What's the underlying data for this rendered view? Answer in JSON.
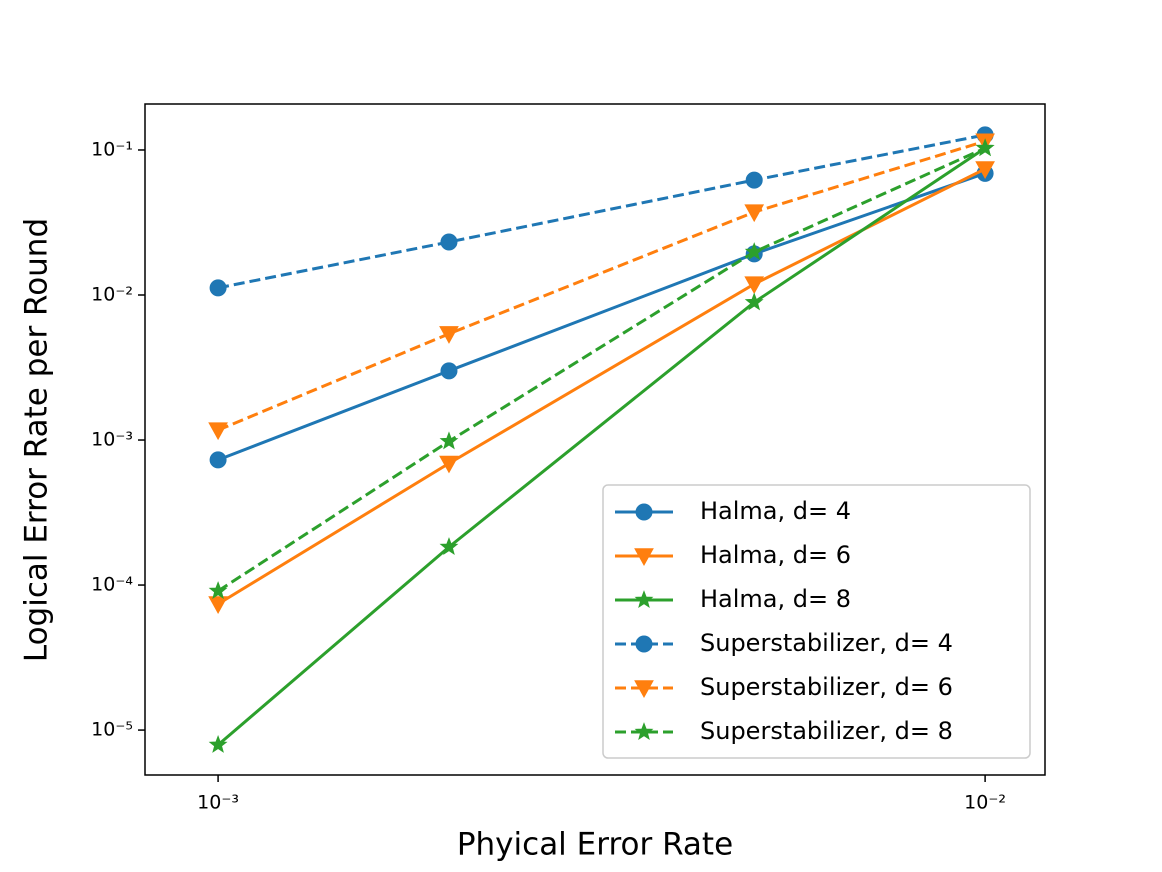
{
  "chart_data": {
    "type": "line",
    "xlabel": "Phyical Error Rate",
    "ylabel": "Logical Error Rate per Round",
    "x": [
      0.001,
      0.002,
      0.005,
      0.01
    ],
    "xscale": "log",
    "yscale": "log",
    "xlim": [
      0.000803,
      0.01197
    ],
    "ylim": [
      4.9e-06,
      0.2075
    ],
    "xticks": [
      {
        "value": 0.001,
        "label": "10⁻³"
      },
      {
        "value": 0.01,
        "label": "10⁻²"
      }
    ],
    "yticks": [
      {
        "value": 1e-05,
        "label": "10⁻⁵"
      },
      {
        "value": 0.0001,
        "label": "10⁻⁴"
      },
      {
        "value": 0.001,
        "label": "10⁻³"
      },
      {
        "value": 0.01,
        "label": "10⁻²"
      },
      {
        "value": 0.1,
        "label": "10⁻¹"
      }
    ],
    "legend": "lower right",
    "series": [
      {
        "name": "Halma, d= 4",
        "color": "#1f77b4",
        "marker": "circle",
        "linestyle": "solid",
        "values": [
          0.00073,
          0.003,
          0.0192,
          0.069
        ]
      },
      {
        "name": "Halma, d= 6",
        "color": "#ff7f0e",
        "marker": "triangle-down",
        "linestyle": "solid",
        "values": [
          7.4e-05,
          0.00069,
          0.0119,
          0.074
        ]
      },
      {
        "name": "Halma, d= 8",
        "color": "#2ca02c",
        "marker": "star",
        "linestyle": "solid",
        "values": [
          7.9e-06,
          0.000183,
          0.0089,
          0.103
        ]
      },
      {
        "name": "Superstabilizer, d= 4",
        "color": "#1f77b4",
        "marker": "circle",
        "linestyle": "dashed",
        "values": [
          0.0112,
          0.0232,
          0.062,
          0.127
        ]
      },
      {
        "name": "Superstabilizer, d= 6",
        "color": "#ff7f0e",
        "marker": "triangle-down",
        "linestyle": "dashed",
        "values": [
          0.00117,
          0.0054,
          0.0373,
          0.115
        ]
      },
      {
        "name": "Superstabilizer, d= 8",
        "color": "#2ca02c",
        "marker": "star",
        "linestyle": "dashed",
        "values": [
          9.1e-05,
          0.00098,
          0.0198,
          0.103
        ]
      }
    ]
  }
}
